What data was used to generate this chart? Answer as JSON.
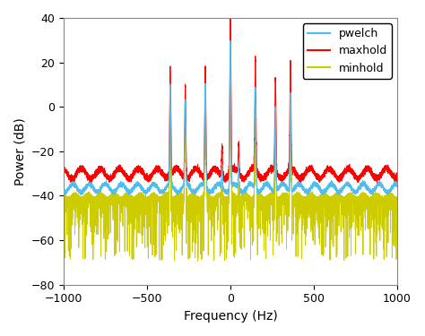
{
  "title": "",
  "xlabel": "Frequency (Hz)",
  "ylabel": "Power (dB)",
  "xlim": [
    -1000,
    1000
  ],
  "ylim": [
    -80,
    40
  ],
  "yticks": [
    -80,
    -60,
    -40,
    -20,
    0,
    20,
    40
  ],
  "xticks": [
    -1000,
    -500,
    0,
    500,
    1000
  ],
  "legend_labels": [
    "pwelch",
    "maxhold",
    "minhold"
  ],
  "line_colors": [
    "#4DBEEE",
    "#FF0000",
    "#CCCC00"
  ],
  "fs": 2000,
  "noise_floor_pwelch": -36.5,
  "noise_floor_maxhold": -30.0,
  "noise_floor_minhold": -40.0,
  "background_color": "#FFFFFF",
  "ripple_freq_blue": 0.065,
  "ripple_amp_blue": 1.8,
  "ripple_freq_red": 0.055,
  "ripple_amp_red": 2.2,
  "peak_positions": [
    0,
    -50,
    50,
    -150,
    150,
    -270,
    270,
    -360,
    360
  ],
  "peak_heights_pwelch": [
    65,
    10,
    10,
    46,
    46,
    38,
    38,
    44,
    44
  ],
  "peak_heights_maxhold": [
    72,
    14,
    14,
    50,
    50,
    42,
    42,
    48,
    48
  ],
  "peak_heights_minhold": [
    57,
    6,
    6,
    40,
    40,
    30,
    30,
    36,
    36
  ],
  "peak_widths": [
    3.5,
    3.0,
    3.0,
    3.5,
    3.5,
    3.5,
    3.5,
    3.5,
    3.5
  ]
}
